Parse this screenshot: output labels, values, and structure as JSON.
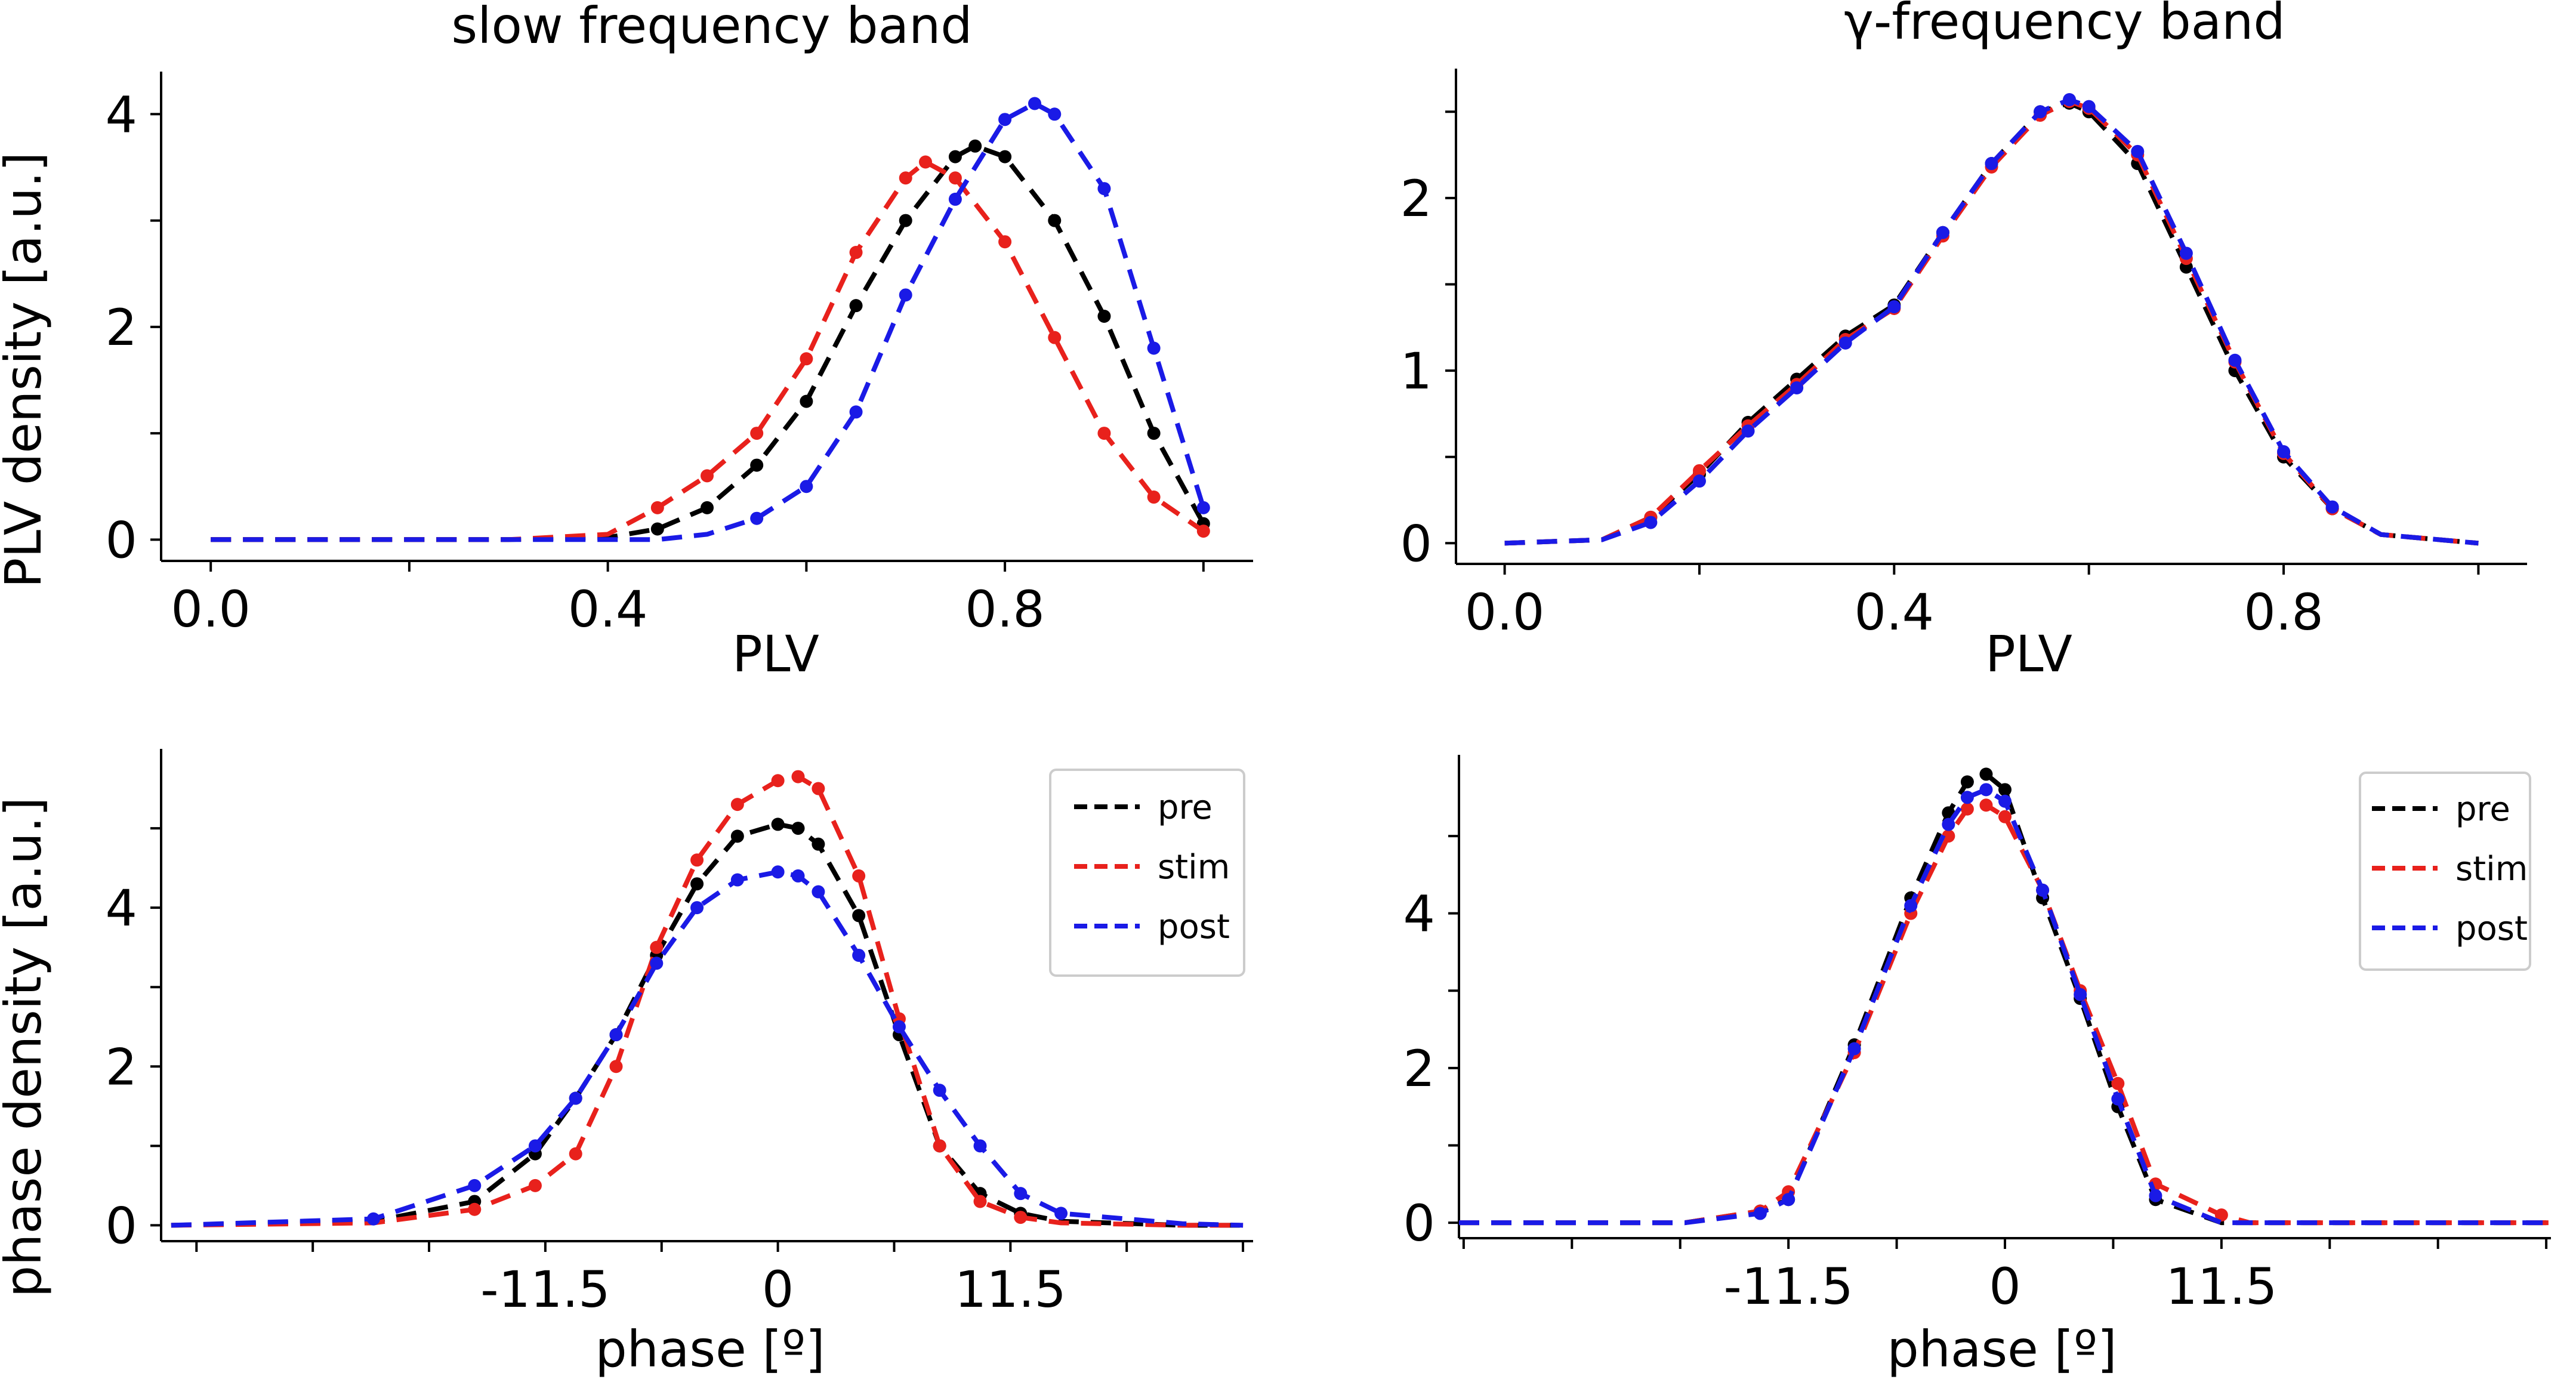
{
  "chart_data": [
    {
      "type": "line",
      "panel": "top-left",
      "title": "slow frequency band",
      "xlabel": "PLV",
      "ylabel": "PLV density [a.u.]",
      "xlim": [
        -0.05,
        1.05
      ],
      "ylim": [
        -0.2,
        4.4
      ],
      "xticks": [
        0.0,
        0.2,
        0.4,
        0.6,
        0.8,
        1.0
      ],
      "xticklabels": [
        "0.0",
        "",
        "0.4",
        "",
        "0.8",
        ""
      ],
      "yticks": [
        0,
        1,
        2,
        3,
        4
      ],
      "yticklabels": [
        "0",
        "",
        "2",
        "",
        "4"
      ],
      "series": [
        {
          "name": "pre",
          "color": "#000000",
          "x": [
            0.0,
            0.3,
            0.4,
            0.45,
            0.5,
            0.55,
            0.6,
            0.65,
            0.7,
            0.75,
            0.77,
            0.8,
            0.85,
            0.9,
            0.95,
            1.0
          ],
          "y": [
            0,
            0,
            0.02,
            0.1,
            0.3,
            0.7,
            1.3,
            2.2,
            3.0,
            3.6,
            3.7,
            3.6,
            3.0,
            2.1,
            1.0,
            0.15
          ]
        },
        {
          "name": "stim",
          "color": "#e8211c",
          "x": [
            0.0,
            0.3,
            0.4,
            0.45,
            0.5,
            0.55,
            0.6,
            0.65,
            0.7,
            0.72,
            0.75,
            0.8,
            0.85,
            0.9,
            0.95,
            1.0
          ],
          "y": [
            0,
            0,
            0.05,
            0.3,
            0.6,
            1.0,
            1.7,
            2.7,
            3.4,
            3.55,
            3.4,
            2.8,
            1.9,
            1.0,
            0.4,
            0.08
          ]
        },
        {
          "name": "post",
          "color": "#1a1ae6",
          "x": [
            0.0,
            0.45,
            0.5,
            0.55,
            0.6,
            0.65,
            0.7,
            0.75,
            0.8,
            0.83,
            0.85,
            0.9,
            0.95,
            1.0
          ],
          "y": [
            0,
            0,
            0.05,
            0.2,
            0.5,
            1.2,
            2.3,
            3.2,
            3.95,
            4.1,
            4.0,
            3.3,
            1.8,
            0.3
          ]
        }
      ]
    },
    {
      "type": "line",
      "panel": "top-right",
      "title": "γ-frequency band",
      "xlabel": "PLV",
      "ylabel": "",
      "xlim": [
        -0.05,
        1.05
      ],
      "ylim": [
        -0.12,
        2.75
      ],
      "xticks": [
        0.0,
        0.2,
        0.4,
        0.6,
        0.8,
        1.0
      ],
      "xticklabels": [
        "0.0",
        "",
        "0.4",
        "",
        "0.8",
        ""
      ],
      "yticks": [
        0,
        0.5,
        1,
        1.5,
        2,
        2.5
      ],
      "yticklabels": [
        "0",
        "",
        "1",
        "",
        "2",
        ""
      ],
      "series": [
        {
          "name": "pre",
          "color": "#000000",
          "x": [
            0.0,
            0.1,
            0.15,
            0.2,
            0.25,
            0.3,
            0.35,
            0.4,
            0.45,
            0.5,
            0.55,
            0.58,
            0.6,
            0.65,
            0.7,
            0.75,
            0.8,
            0.85,
            0.9,
            1.0
          ],
          "y": [
            0,
            0.02,
            0.15,
            0.4,
            0.7,
            0.95,
            1.2,
            1.38,
            1.8,
            2.2,
            2.5,
            2.55,
            2.5,
            2.2,
            1.6,
            1.0,
            0.5,
            0.2,
            0.05,
            0
          ]
        },
        {
          "name": "stim",
          "color": "#e8211c",
          "x": [
            0.0,
            0.1,
            0.15,
            0.2,
            0.25,
            0.3,
            0.35,
            0.4,
            0.45,
            0.5,
            0.55,
            0.58,
            0.6,
            0.65,
            0.7,
            0.75,
            0.8,
            0.85,
            0.9,
            1.0
          ],
          "y": [
            0,
            0.02,
            0.15,
            0.42,
            0.68,
            0.92,
            1.18,
            1.36,
            1.78,
            2.18,
            2.48,
            2.56,
            2.52,
            2.25,
            1.65,
            1.05,
            0.52,
            0.2,
            0.05,
            0
          ]
        },
        {
          "name": "post",
          "color": "#1a1ae6",
          "x": [
            0.0,
            0.1,
            0.15,
            0.2,
            0.25,
            0.3,
            0.35,
            0.4,
            0.45,
            0.5,
            0.55,
            0.58,
            0.6,
            0.65,
            0.7,
            0.75,
            0.8,
            0.85,
            0.9,
            1.0
          ],
          "y": [
            0,
            0.02,
            0.12,
            0.36,
            0.65,
            0.9,
            1.16,
            1.37,
            1.8,
            2.2,
            2.5,
            2.57,
            2.53,
            2.27,
            1.68,
            1.06,
            0.53,
            0.21,
            0.05,
            0
          ]
        }
      ]
    },
    {
      "type": "line",
      "panel": "bottom-left",
      "title": "",
      "xlabel": "phase [º]",
      "ylabel": "phase density [a.u.]",
      "xlim": [
        -30.5,
        23.5
      ],
      "ylim": [
        -0.2,
        6.0
      ],
      "xticks": [
        -28.75,
        -23.0,
        -17.25,
        -11.5,
        -5.75,
        0,
        5.75,
        11.5,
        17.25,
        23.0
      ],
      "xticklabels": [
        "",
        "",
        "",
        "-11.5",
        "",
        "0",
        "",
        "11.5",
        "",
        ""
      ],
      "yticks": [
        0,
        1,
        2,
        3,
        4,
        5
      ],
      "yticklabels": [
        "0",
        "",
        "2",
        "",
        "4",
        ""
      ],
      "legend": {
        "position": "top-right",
        "entries": [
          "pre",
          "stim",
          "post"
        ]
      },
      "series": [
        {
          "name": "pre",
          "color": "#000000",
          "x": [
            -30,
            -20,
            -15,
            -12,
            -10,
            -8,
            -6,
            -4,
            -2,
            0,
            1,
            2,
            4,
            6,
            8,
            10,
            12,
            14,
            20,
            23
          ],
          "y": [
            0,
            0.05,
            0.3,
            0.9,
            1.6,
            2.4,
            3.4,
            4.3,
            4.9,
            5.05,
            5.0,
            4.8,
            3.9,
            2.4,
            1.0,
            0.4,
            0.15,
            0.05,
            0,
            0
          ]
        },
        {
          "name": "stim",
          "color": "#e8211c",
          "x": [
            -30,
            -20,
            -15,
            -12,
            -10,
            -8,
            -6,
            -4,
            -2,
            0,
            1,
            2,
            4,
            6,
            8,
            10,
            12,
            14,
            20,
            23
          ],
          "y": [
            0,
            0.03,
            0.2,
            0.5,
            0.9,
            2.0,
            3.5,
            4.6,
            5.3,
            5.6,
            5.65,
            5.5,
            4.4,
            2.6,
            1.0,
            0.3,
            0.1,
            0.03,
            0,
            0
          ]
        },
        {
          "name": "post",
          "color": "#1a1ae6",
          "x": [
            -30,
            -20,
            -15,
            -12,
            -10,
            -8,
            -6,
            -4,
            -2,
            0,
            1,
            2,
            4,
            6,
            8,
            10,
            12,
            14,
            20,
            23
          ],
          "y": [
            0,
            0.08,
            0.5,
            1.0,
            1.6,
            2.4,
            3.3,
            4.0,
            4.35,
            4.45,
            4.4,
            4.2,
            3.4,
            2.5,
            1.7,
            1.0,
            0.4,
            0.15,
            0.02,
            0
          ]
        }
      ]
    },
    {
      "type": "line",
      "panel": "bottom-right",
      "title": "",
      "xlabel": "phase [º]",
      "ylabel": "",
      "xlim": [
        -29.0,
        29.0
      ],
      "ylim": [
        -0.2,
        6.05
      ],
      "xticks": [
        -28.75,
        -23.0,
        -17.25,
        -11.5,
        -5.75,
        0,
        5.75,
        11.5,
        17.25,
        23.0,
        28.75
      ],
      "xticklabels": [
        "",
        "",
        "",
        "-11.5",
        "",
        "0",
        "",
        "11.5",
        "",
        "",
        ""
      ],
      "yticks": [
        0,
        1,
        2,
        3,
        4,
        5
      ],
      "yticklabels": [
        "0",
        "",
        "2",
        "",
        "4",
        ""
      ],
      "legend": {
        "position": "top-right",
        "entries": [
          "pre",
          "stim",
          "post"
        ]
      },
      "series": [
        {
          "name": "pre",
          "color": "#000000",
          "x": [
            -29,
            -17,
            -13,
            -11.5,
            -8,
            -5,
            -3,
            -2,
            -1,
            0,
            2,
            4,
            6,
            8,
            11.5,
            13,
            29
          ],
          "y": [
            0,
            0,
            0.15,
            0.3,
            2.3,
            4.2,
            5.3,
            5.7,
            5.8,
            5.6,
            4.2,
            2.9,
            1.5,
            0.3,
            0,
            0,
            0
          ]
        },
        {
          "name": "stim",
          "color": "#e8211c",
          "x": [
            -29,
            -17,
            -13,
            -11.5,
            -8,
            -5,
            -3,
            -2,
            -1,
            0,
            2,
            4,
            6,
            8,
            11.5,
            13,
            29
          ],
          "y": [
            0,
            0,
            0.15,
            0.4,
            2.2,
            4.0,
            5.0,
            5.35,
            5.4,
            5.25,
            4.3,
            3.0,
            1.8,
            0.5,
            0.1,
            0,
            0
          ]
        },
        {
          "name": "post",
          "color": "#1a1ae6",
          "x": [
            -29,
            -17,
            -13,
            -11.5,
            -8,
            -5,
            -3,
            -2,
            -1,
            0,
            2,
            4,
            6,
            8,
            11.5,
            13,
            29
          ],
          "y": [
            0,
            0,
            0.12,
            0.3,
            2.25,
            4.1,
            5.15,
            5.5,
            5.6,
            5.45,
            4.3,
            2.95,
            1.6,
            0.35,
            0,
            0,
            0
          ]
        }
      ]
    }
  ]
}
